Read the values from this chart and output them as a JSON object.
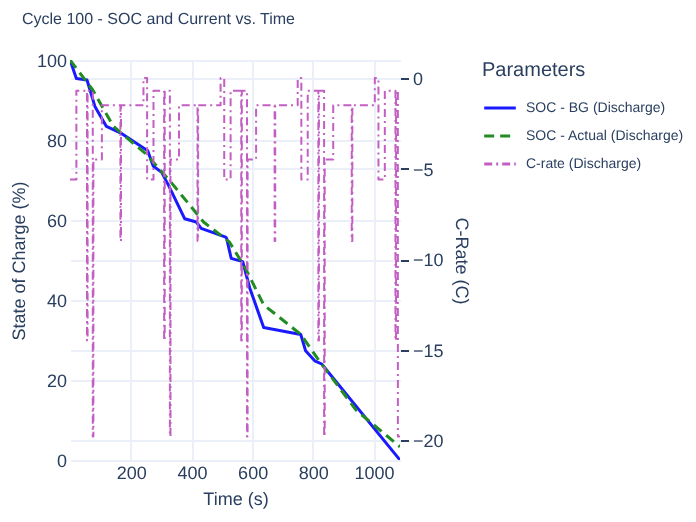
{
  "chart_data": {
    "type": "line",
    "title": "Cycle 100 - SOC and Current vs. Time",
    "xlabel": "Time (s)",
    "ylabel": "State of Charge (%)",
    "y2label": "C-Rate (C)",
    "legend_title": "Parameters",
    "xlim": [
      0,
      1087
    ],
    "xticks": [
      200,
      400,
      600,
      800,
      1000
    ],
    "ylim": [
      0,
      100
    ],
    "yticks": [
      0,
      20,
      40,
      60,
      80,
      100
    ],
    "y2lim": [
      -21.1,
      1
    ],
    "y2ticks": [
      {
        "value": 0,
        "label": "0"
      },
      {
        "value": -5,
        "label": "−5"
      },
      {
        "value": -10,
        "label": "−10"
      },
      {
        "value": -15,
        "label": "−15"
      },
      {
        "value": -20,
        "label": "−20"
      }
    ],
    "grid": true,
    "legend": "right",
    "series": [
      {
        "name": "SOC - BG (Discharge)",
        "color": "#1a1aff",
        "line_style": "solid",
        "x": [
          0,
          21,
          56,
          82,
          120,
          166,
          256,
          274,
          302,
          325,
          378,
          416,
          432,
          513,
          516,
          531,
          569,
          592,
          638,
          760,
          776,
          806,
          829,
          1087
        ],
        "values": [
          100,
          95.4,
          95,
          88.4,
          83.4,
          81.8,
          77.3,
          73.5,
          71.9,
          68.6,
          60.3,
          59.5,
          57.9,
          55.7,
          55.4,
          50.4,
          49.6,
          43,
          33.1,
          31.4,
          27.3,
          24.8,
          24,
          0
        ]
      },
      {
        "name": "SOC - Actual (Discharge)",
        "color": "#228b22",
        "line_style": "dashed",
        "x": [
          0,
          75,
          143,
          249,
          333,
          440,
          525,
          578,
          638,
          760,
          821,
          943,
          1087
        ],
        "values": [
          100,
          92.5,
          83.4,
          76.6,
          69.4,
          59.5,
          54.5,
          47.9,
          38.8,
          31.4,
          24.8,
          12.4,
          3.3
        ]
      },
      {
        "name": "C-rate (Discharge)",
        "color": "#c35fc3",
        "type": "step",
        "axis": "y2",
        "line_style": "dotted",
        "x": [
          0,
          21,
          56,
          58,
          75,
          77,
          105,
          166,
          168,
          242,
          254,
          275,
          310,
          312,
          329,
          331,
          359,
          420,
          422,
          496,
          508,
          529,
          564,
          566,
          583,
          585,
          613,
          674,
          676,
          750,
          762,
          783,
          818,
          820,
          837,
          839,
          867,
          928,
          930,
          1004,
          1016,
          1037,
          1072,
          1074,
          1080,
          1087
        ],
        "values": [
          -5.6,
          -0.7,
          -14.5,
          -0.7,
          -19.8,
          -4.5,
          -1.5,
          -9,
          -1.5,
          0,
          -5.6,
          -0.7,
          -14.5,
          -0.7,
          -19.8,
          -4.5,
          -1.5,
          -9,
          -1.5,
          0,
          -5.6,
          -0.7,
          -14.5,
          -0.7,
          -19.8,
          -4.5,
          -1.5,
          -9,
          -1.5,
          0,
          -5.6,
          -0.7,
          -14.5,
          -0.7,
          -19.8,
          -4.5,
          -1.5,
          -9,
          -1.5,
          0,
          -5.6,
          -0.7,
          -14.5,
          -0.7,
          -19.8,
          -19.8
        ]
      }
    ]
  }
}
